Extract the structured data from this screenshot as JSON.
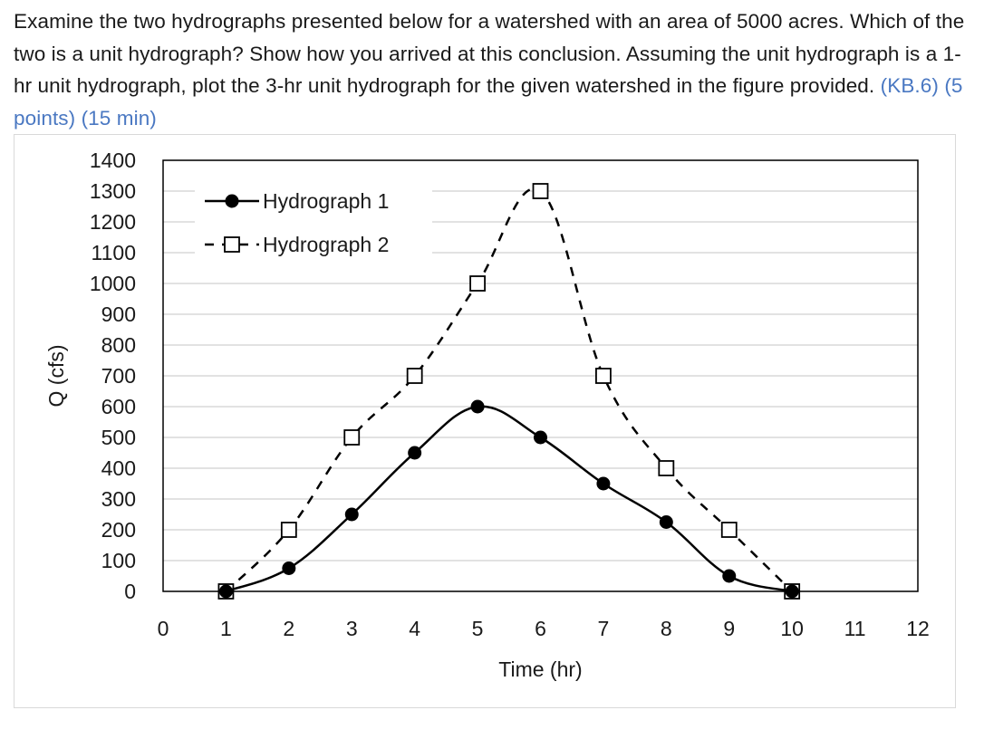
{
  "question": {
    "text": "Examine the two hydrographs presented below for a watershed with an area of 5000 acres. Which of the two is a unit hydrograph? Show how you arrived at this conclusion. Assuming the unit hydrograph is a 1-hr unit hydrograph, plot the 3-hr unit hydrograph for the given watershed in the figure provided. ",
    "reference": "(KB.6) (5 points) (15 min)",
    "reference_color": "#4a78c2"
  },
  "chart_data": {
    "type": "line",
    "xlabel": "Time (hr)",
    "ylabel": "Q (cfs)",
    "xlim": [
      0,
      12
    ],
    "ylim": [
      0,
      1400
    ],
    "x_ticks": [
      "0",
      "1",
      "2",
      "3",
      "4",
      "5",
      "6",
      "7",
      "8",
      "9",
      "10",
      "11",
      "12"
    ],
    "y_ticks": [
      "0",
      "100",
      "200",
      "300",
      "400",
      "500",
      "600",
      "700",
      "800",
      "900",
      "1000",
      "1100",
      "1200",
      "1300",
      "1400"
    ],
    "grid": "horizontal",
    "legend_position": "top-left",
    "series": [
      {
        "name": "Hydrograph 1",
        "x": [
          1,
          2,
          3,
          4,
          5,
          6,
          7,
          8,
          9,
          10
        ],
        "values": [
          0,
          75,
          250,
          450,
          600,
          500,
          350,
          225,
          50,
          0
        ],
        "line_style": "solid",
        "marker": "filled-circle",
        "color": "#000000"
      },
      {
        "name": "Hydrograph 2",
        "x": [
          1,
          2,
          3,
          4,
          5,
          6,
          7,
          8,
          9,
          10
        ],
        "values": [
          0,
          200,
          500,
          700,
          1000,
          1300,
          700,
          400,
          200,
          0
        ],
        "line_style": "dashed",
        "marker": "open-square",
        "color": "#000000"
      }
    ]
  }
}
